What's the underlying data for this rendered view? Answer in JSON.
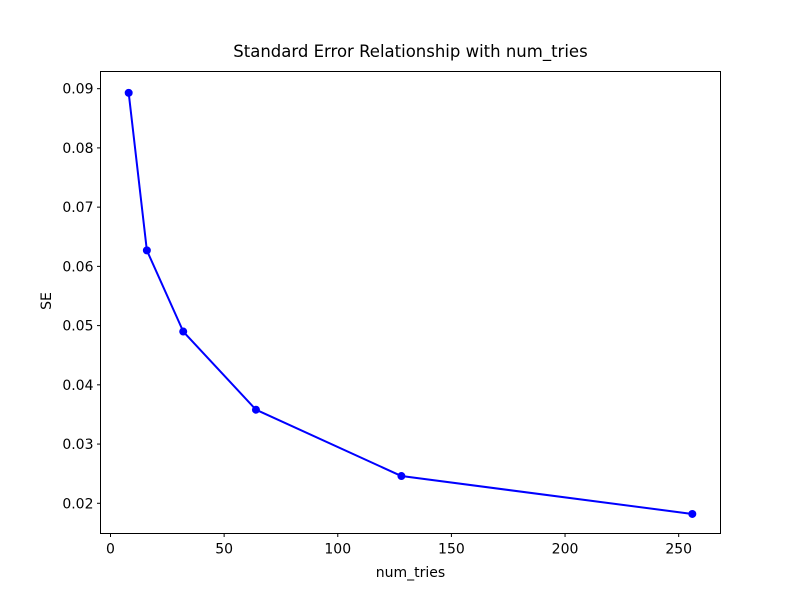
{
  "chart_data": {
    "type": "line",
    "title": "Standard Error Relationship with num_tries",
    "xlabel": "num_tries",
    "ylabel": "SE",
    "x": [
      8,
      16,
      32,
      64,
      128,
      256
    ],
    "y": [
      0.0893,
      0.0627,
      0.049,
      0.0358,
      0.0246,
      0.0182
    ],
    "x_ticks": [
      0,
      50,
      100,
      150,
      200,
      250
    ],
    "y_ticks": [
      0.02,
      0.03,
      0.04,
      0.05,
      0.06,
      0.07,
      0.08,
      0.09
    ],
    "y_tick_decimals": 2,
    "xlim": [
      -4.4,
      268.4
    ],
    "ylim": [
      0.0149,
      0.0929
    ],
    "grid": false,
    "legend": "none",
    "line_color": "#0000ff",
    "marker": "o",
    "marker_color": "#0000ff",
    "marker_radius": 4,
    "line_width": 2,
    "background_color": "#ffffff",
    "spine_color": "#000000"
  }
}
